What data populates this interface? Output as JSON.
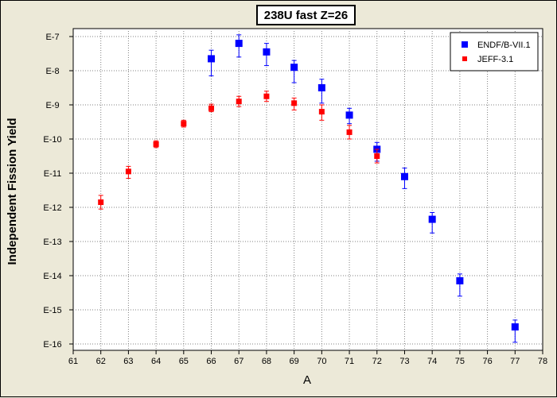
{
  "chart_data": {
    "type": "scatter",
    "title": "238U fast Z=26",
    "xlabel": "A",
    "ylabel": "Independent Fission Yield",
    "xlim": [
      61,
      78
    ],
    "x_ticks": [
      61,
      62,
      63,
      64,
      65,
      66,
      67,
      68,
      69,
      70,
      71,
      72,
      73,
      74,
      75,
      76,
      77,
      78
    ],
    "y_scale": "log",
    "ylim_exponent": [
      -16,
      -7
    ],
    "y_tick_labels": [
      "E-7",
      "E-8",
      "E-9",
      "E-10",
      "E-11",
      "E-12",
      "E-13",
      "E-14",
      "E-15",
      "E-16"
    ],
    "grid": true,
    "legend_position": "top-right",
    "series": [
      {
        "name": "ENDF/B-VII.1",
        "color": "#0000ff",
        "marker": "square",
        "points": [
          {
            "x": 66,
            "y_log10": -7.65,
            "err_lo_log10": -8.15,
            "err_hi_log10": -7.4
          },
          {
            "x": 67,
            "y_log10": -7.2,
            "err_lo_log10": -7.6,
            "err_hi_log10": -6.95
          },
          {
            "x": 68,
            "y_log10": -7.45,
            "err_lo_log10": -7.85,
            "err_hi_log10": -7.2
          },
          {
            "x": 69,
            "y_log10": -7.9,
            "err_lo_log10": -8.35,
            "err_hi_log10": -7.7
          },
          {
            "x": 70,
            "y_log10": -8.5,
            "err_lo_log10": -8.95,
            "err_hi_log10": -8.25
          },
          {
            "x": 71,
            "y_log10": -9.3,
            "err_lo_log10": -9.55,
            "err_hi_log10": -9.1
          },
          {
            "x": 72,
            "y_log10": -10.3,
            "err_lo_log10": -10.65,
            "err_hi_log10": -10.1
          },
          {
            "x": 73,
            "y_log10": -11.1,
            "err_lo_log10": -11.45,
            "err_hi_log10": -10.85
          },
          {
            "x": 74,
            "y_log10": -12.35,
            "err_lo_log10": -12.75,
            "err_hi_log10": -12.15
          },
          {
            "x": 75,
            "y_log10": -14.15,
            "err_lo_log10": -14.6,
            "err_hi_log10": -13.95
          },
          {
            "x": 77,
            "y_log10": -15.5,
            "err_lo_log10": -15.95,
            "err_hi_log10": -15.3
          }
        ]
      },
      {
        "name": "JEFF-3.1",
        "color": "#ff0000",
        "marker": "square",
        "points": [
          {
            "x": 62,
            "y_log10": -11.85,
            "err_lo_log10": -12.05,
            "err_hi_log10": -11.65
          },
          {
            "x": 63,
            "y_log10": -10.95,
            "err_lo_log10": -11.15,
            "err_hi_log10": -10.8
          },
          {
            "x": 64,
            "y_log10": -10.15,
            "err_lo_log10": -10.25,
            "err_hi_log10": -10.05
          },
          {
            "x": 65,
            "y_log10": -9.55,
            "err_lo_log10": -9.65,
            "err_hi_log10": -9.45
          },
          {
            "x": 66,
            "y_log10": -9.1,
            "err_lo_log10": -9.2,
            "err_hi_log10": -8.98
          },
          {
            "x": 67,
            "y_log10": -8.9,
            "err_lo_log10": -9.05,
            "err_hi_log10": -8.75
          },
          {
            "x": 68,
            "y_log10": -8.75,
            "err_lo_log10": -8.9,
            "err_hi_log10": -8.6
          },
          {
            "x": 69,
            "y_log10": -8.95,
            "err_lo_log10": -9.15,
            "err_hi_log10": -8.8
          },
          {
            "x": 70,
            "y_log10": -9.2,
            "err_lo_log10": -9.45,
            "err_hi_log10": -9.0
          },
          {
            "x": 71,
            "y_log10": -9.8,
            "err_lo_log10": -10.0,
            "err_hi_log10": -9.6
          },
          {
            "x": 72,
            "y_log10": -10.5,
            "err_lo_log10": -10.7,
            "err_hi_log10": -10.3
          }
        ]
      }
    ]
  }
}
